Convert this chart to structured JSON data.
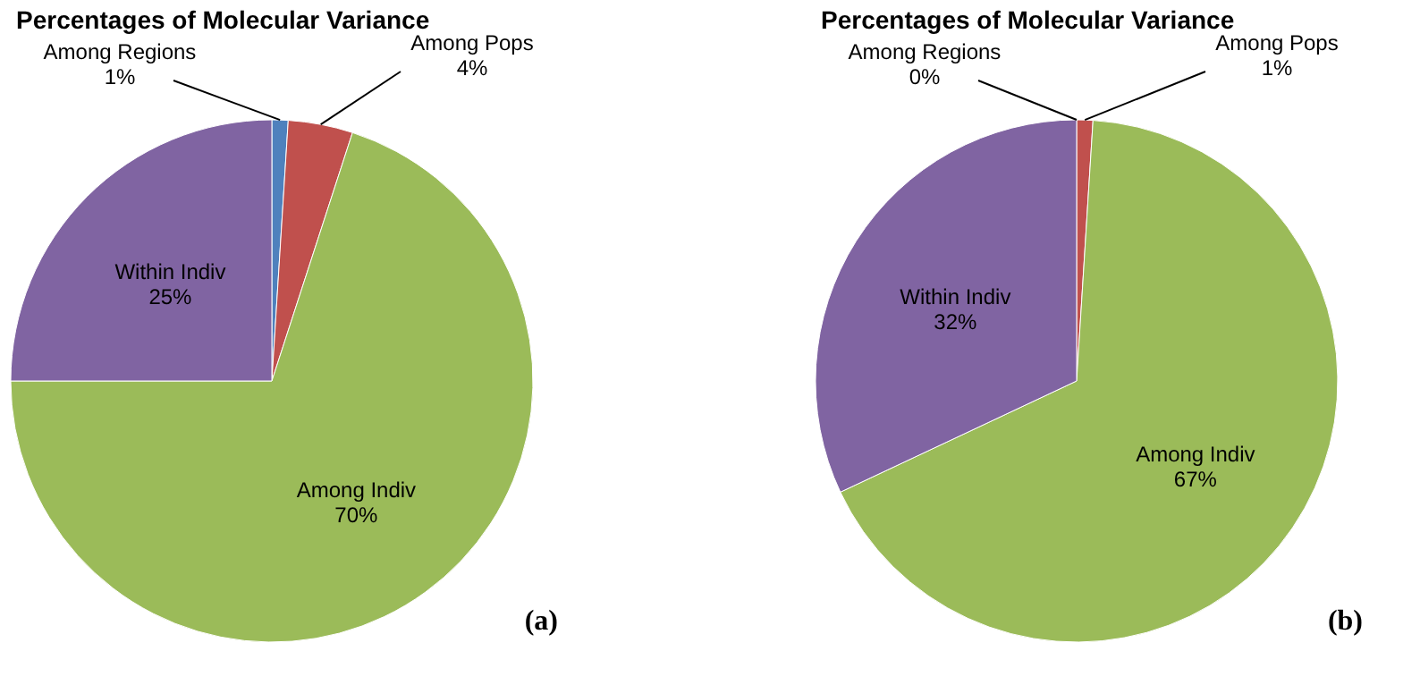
{
  "chart_data": [
    {
      "type": "pie",
      "title": "Percentages of Molecular Variance",
      "categories": [
        "Among Regions",
        "Among Pops",
        "Among Indiv",
        "Within Indiv"
      ],
      "values": [
        1,
        4,
        70,
        25
      ],
      "value_labels": [
        "1%",
        "4%",
        "70%",
        "25%"
      ],
      "colors": [
        "#4f81bd",
        "#c0504d",
        "#9bbb59",
        "#8064a2"
      ],
      "legend": false,
      "annotations": [
        "(a)"
      ]
    },
    {
      "type": "pie",
      "title": "Percentages of Molecular Variance",
      "categories": [
        "Among Regions",
        "Among Pops",
        "Among Indiv",
        "Within Indiv"
      ],
      "values": [
        0,
        1,
        67,
        32
      ],
      "value_labels": [
        "0%",
        "1%",
        "67%",
        "32%"
      ],
      "colors": [
        "#4f81bd",
        "#c0504d",
        "#9bbb59",
        "#8064a2"
      ],
      "legend": false,
      "annotations": [
        "(b)"
      ]
    }
  ]
}
